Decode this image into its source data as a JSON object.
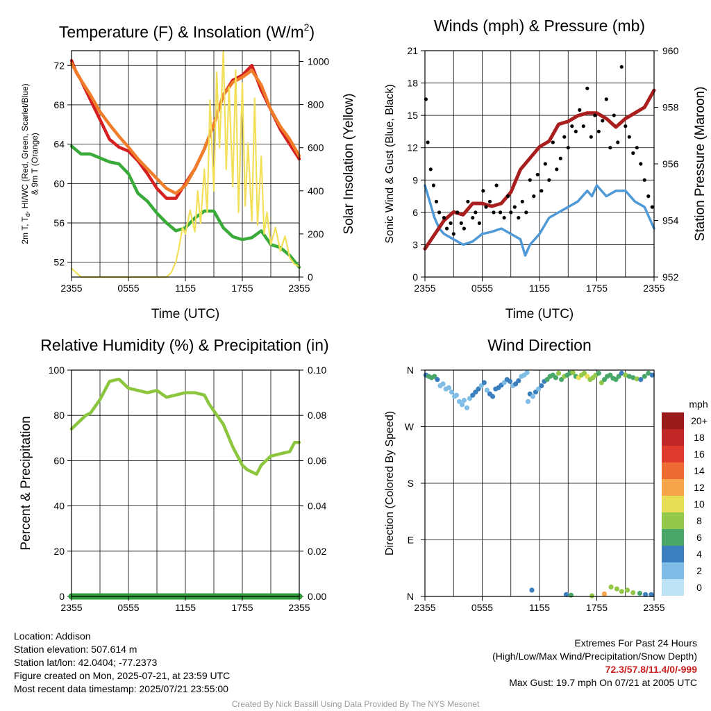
{
  "palette": {
    "temp": "#d42020",
    "dew": "#3aab3a",
    "temp9m": "#f07d2a",
    "insolation": "#f3e05a",
    "wind": "#4f9ad6",
    "gust": "#000000",
    "pressure": "#a91e1e",
    "rh": "#8cc63f",
    "precip": "#2f9a3a"
  },
  "xticks": [
    "2355",
    "0555",
    "1155",
    "1755",
    "2355"
  ],
  "charts": [
    {
      "type": "line",
      "title_main": "Temperature (F) & Insolation (W/m",
      "title_sup": "2",
      "title_end": ")",
      "xlabel": "Time (UTC)",
      "ylabel_left_1": "2m T, T",
      "ylabel_left_sub": "d",
      "ylabel_left_1b": ", HI/WC (Red, Green, Scarlet/Blue)",
      "ylabel_left_2": "& 9m T (Orange)",
      "ylabel_right": "Solar Insolation (Yellow)",
      "ylim_left": [
        50.5,
        73.5
      ],
      "yticks_left": [
        "52",
        "56",
        "60",
        "64",
        "68",
        "72"
      ],
      "ylim_right": [
        0,
        1050
      ],
      "yticks_right": [
        "0",
        "200",
        "400",
        "600",
        "800",
        "1000"
      ],
      "series": [
        {
          "key": "temp",
          "axis": "left",
          "x": [
            0,
            0.5,
            1,
            2,
            3,
            4,
            5,
            6,
            7,
            8,
            9,
            10,
            11,
            12,
            13,
            14,
            15,
            16,
            17,
            18,
            19,
            20,
            21,
            22,
            23,
            24
          ],
          "y": [
            72.5,
            71.3,
            70.5,
            68.5,
            66.5,
            64.5,
            63.7,
            63.3,
            62.3,
            61.0,
            59.5,
            58.5,
            58.5,
            60.0,
            61.5,
            63.5,
            66.0,
            69.0,
            70.5,
            71.0,
            72.0,
            69.5,
            67.5,
            65.5,
            64.0,
            62.5
          ]
        },
        {
          "key": "temp9m",
          "axis": "left",
          "x": [
            0,
            1,
            2,
            3,
            4,
            5,
            6,
            7,
            8,
            9,
            10,
            11,
            12,
            13,
            14,
            15,
            16,
            17,
            18,
            19,
            20,
            21,
            22,
            23,
            24
          ],
          "y": [
            72.2,
            70.5,
            69.0,
            67.3,
            66.0,
            64.8,
            63.7,
            62.5,
            61.5,
            60.5,
            59.5,
            59.0,
            59.8,
            61.5,
            63.5,
            66.0,
            69.0,
            70.3,
            70.8,
            71.5,
            70.0,
            67.5,
            65.8,
            64.5,
            62.8
          ]
        },
        {
          "key": "dew",
          "axis": "left",
          "x": [
            0,
            1,
            2,
            3,
            4,
            5,
            6,
            7,
            8,
            9,
            10,
            11,
            12,
            13,
            14,
            15,
            16,
            17,
            18,
            19,
            20,
            21,
            22,
            23,
            24
          ],
          "y": [
            63.8,
            63.0,
            63.0,
            62.6,
            62.2,
            62.0,
            61.0,
            59.0,
            58.2,
            57.0,
            56.0,
            55.2,
            55.5,
            56.5,
            57.2,
            57.2,
            55.5,
            54.6,
            54.3,
            54.5,
            55.2,
            53.8,
            53.5,
            52.7,
            51.5
          ]
        },
        {
          "key": "insolation",
          "axis": "right",
          "x": [
            0,
            0.5,
            1,
            2,
            4,
            6,
            8,
            9,
            10,
            10.5,
            11,
            11.3,
            11.7,
            12,
            12.5,
            13,
            13.3,
            13.6,
            14,
            14.3,
            14.6,
            15,
            15.3,
            15.6,
            16,
            16.3,
            16.6,
            17,
            17.3,
            17.6,
            18,
            18.3,
            18.6,
            19,
            19.3,
            19.6,
            20,
            20.3,
            20.6,
            21,
            21.5,
            22,
            22.5,
            23,
            23.5,
            24
          ],
          "y": [
            40,
            20,
            0,
            0,
            0,
            0,
            0,
            0,
            0,
            20,
            70,
            130,
            230,
            200,
            310,
            210,
            400,
            250,
            500,
            300,
            820,
            400,
            950,
            600,
            1050,
            500,
            880,
            420,
            960,
            300,
            900,
            330,
            620,
            260,
            830,
            240,
            560,
            200,
            300,
            150,
            230,
            120,
            190,
            90,
            60,
            50
          ]
        }
      ]
    },
    {
      "type": "line_scatter",
      "title": "Winds (mph) & Pressure (mb)",
      "xlabel": "Time (UTC)",
      "ylabel_left": "Sonic Wind & Gust (Blue, Black)",
      "ylabel_right": "Station Pressure (Maroon)",
      "ylim_left": [
        0,
        21
      ],
      "yticks_left": [
        "0",
        "3",
        "6",
        "9",
        "12",
        "15",
        "18",
        "21"
      ],
      "ylim_right": [
        952,
        960
      ],
      "yticks_right": [
        "952",
        "954",
        "956",
        "958",
        "960"
      ],
      "series": [
        {
          "key": "wind",
          "axis": "left",
          "x": [
            0,
            0.5,
            1,
            1.5,
            2,
            3,
            4,
            5,
            6,
            7,
            8,
            9,
            10,
            10.5,
            11,
            12,
            13,
            14,
            15,
            16,
            17,
            17.5,
            18,
            19,
            20,
            21,
            22,
            23,
            23.5,
            24
          ],
          "y": [
            8.5,
            7.0,
            5.5,
            4.5,
            4.0,
            3.5,
            3.0,
            3.3,
            4.0,
            4.2,
            4.5,
            4.0,
            3.5,
            2.0,
            3.0,
            4.0,
            5.5,
            6.0,
            6.5,
            7.0,
            8.0,
            7.5,
            8.5,
            7.5,
            8.0,
            8.0,
            7.0,
            6.5,
            5.5,
            4.5
          ]
        },
        {
          "key": "pressure",
          "axis": "right",
          "x": [
            0,
            1,
            2,
            3,
            4,
            5,
            6,
            7,
            8,
            9,
            10,
            11,
            12,
            13,
            14,
            15,
            16,
            17,
            18,
            19,
            20,
            21,
            22,
            23,
            24
          ],
          "y": [
            953.0,
            953.5,
            954.0,
            954.3,
            954.2,
            954.6,
            954.6,
            954.5,
            954.6,
            955.0,
            955.8,
            956.2,
            956.6,
            956.8,
            957.4,
            957.5,
            957.7,
            957.8,
            957.8,
            957.6,
            957.3,
            957.6,
            957.8,
            958.0,
            958.6
          ]
        },
        {
          "key": "gust",
          "axis": "left",
          "type": "scatter",
          "x": [
            0.1,
            0.3,
            0.6,
            0.9,
            1.2,
            1.5,
            2.0,
            2.3,
            2.7,
            3.0,
            3.4,
            3.8,
            4.1,
            4.5,
            5.0,
            5.3,
            5.7,
            6.1,
            6.4,
            6.8,
            7.2,
            7.5,
            7.9,
            8.3,
            8.7,
            9.0,
            9.4,
            9.8,
            10.2,
            10.6,
            11.0,
            11.4,
            11.8,
            12.2,
            12.6,
            13.0,
            13.4,
            13.8,
            14.2,
            14.6,
            15.0,
            15.4,
            15.8,
            16.2,
            16.6,
            17.0,
            17.4,
            17.8,
            18.2,
            18.6,
            19.0,
            19.4,
            19.8,
            20.2,
            20.6,
            21.0,
            21.4,
            21.8,
            22.2,
            22.6,
            23.0,
            23.4,
            23.8
          ],
          "y": [
            16.5,
            12.5,
            10.0,
            8.5,
            7.0,
            6.0,
            5.5,
            4.5,
            5.0,
            4.0,
            6.0,
            5.0,
            4.5,
            7.0,
            5.5,
            6.0,
            5.0,
            8.0,
            6.5,
            7.0,
            6.0,
            8.5,
            6.0,
            5.5,
            7.5,
            6.0,
            6.5,
            5.5,
            7.0,
            6.0,
            9.0,
            7.5,
            9.5,
            8.0,
            10.5,
            9.0,
            12.5,
            10.0,
            11.0,
            13.0,
            12.0,
            14.0,
            13.5,
            15.5,
            14.0,
            17.5,
            13.0,
            15.0,
            13.5,
            14.5,
            16.5,
            12.0,
            15.0,
            12.5,
            19.5,
            14.0,
            13.0,
            11.5,
            12.0,
            10.5,
            9.0,
            7.5,
            6.5
          ]
        }
      ]
    },
    {
      "type": "line",
      "title": "Relative Humidity (%) & Precipitation (in)",
      "ylabel_left": "Percent & Precipitation",
      "ylim_left": [
        0,
        100
      ],
      "yticks_left": [
        "0",
        "20",
        "40",
        "60",
        "80",
        "100"
      ],
      "ylim_right": [
        0,
        0.1
      ],
      "yticks_right": [
        "0.00",
        "0.02",
        "0.04",
        "0.06",
        "0.08",
        "0.10"
      ],
      "series": [
        {
          "key": "rh",
          "axis": "left",
          "x": [
            0,
            0.5,
            1,
            1.5,
            2,
            3,
            4,
            5,
            6,
            7,
            8,
            9,
            10,
            11,
            12,
            13,
            14,
            14.5,
            15,
            16,
            17,
            18,
            18.5,
            19,
            19.5,
            20,
            21,
            22,
            23,
            23.5,
            24
          ],
          "y": [
            74,
            76,
            78,
            80,
            81,
            87,
            95,
            96,
            92,
            91,
            90,
            91,
            88,
            89,
            90,
            90,
            89,
            85,
            82,
            76,
            66,
            58,
            56,
            55,
            54,
            58,
            62,
            63,
            64,
            68,
            68
          ]
        },
        {
          "key": "precip",
          "axis": "right",
          "x": [
            0,
            24
          ],
          "y": [
            0,
            0
          ]
        }
      ]
    },
    {
      "type": "scatter",
      "title": "Wind Direction",
      "ylabel_left": "Direction (Colored By Speed)",
      "ylim_left": [
        0,
        360
      ],
      "yticks_left": [
        "N",
        "E",
        "S",
        "W",
        "N"
      ],
      "legend_title": "mph",
      "legend_labels": [
        "20+",
        "18",
        "16",
        "14",
        "12",
        "10",
        "8",
        "6",
        "4",
        "2",
        "0"
      ],
      "legend_colors": [
        "#9b1b1b",
        "#c12727",
        "#df3a2d",
        "#ee6b33",
        "#f6a54a",
        "#e8de55",
        "#94c84a",
        "#4aa76a",
        "#3b7fbe",
        "#7fbde6",
        "#bee3f5"
      ],
      "x": [
        0.1,
        0.4,
        0.7,
        1.0,
        1.3,
        1.6,
        1.9,
        2.2,
        2.5,
        2.8,
        3.1,
        3.3,
        3.6,
        3.9,
        4.1,
        4.4,
        4.7,
        5.0,
        5.3,
        5.6,
        5.9,
        6.2,
        6.5,
        6.8,
        7.1,
        7.4,
        7.7,
        8.0,
        8.3,
        8.6,
        8.9,
        9.2,
        9.5,
        9.8,
        10.1,
        10.4,
        10.7,
        10.8,
        11.0,
        11.3,
        11.6,
        11.9,
        12.2,
        12.5,
        12.8,
        13.1,
        13.4,
        13.7,
        14.0,
        14.3,
        14.6,
        14.9,
        15.2,
        15.5,
        15.8,
        16.1,
        16.4,
        16.7,
        17.0,
        17.3,
        17.6,
        17.9,
        18.2,
        18.5,
        18.8,
        19.1,
        19.4,
        19.7,
        20.0,
        20.3,
        20.6,
        21.0,
        21.4,
        21.8,
        22.2,
        22.6,
        23.0,
        23.4,
        23.8,
        14.8,
        15.3,
        17.5,
        18.8,
        19.5,
        20.1,
        20.6,
        21.2,
        21.8,
        22.5,
        23.1,
        23.7,
        11.2
      ],
      "y": [
        352,
        350,
        348,
        350,
        345,
        335,
        338,
        330,
        332,
        325,
        318,
        320,
        310,
        305,
        312,
        300,
        315,
        320,
        325,
        330,
        335,
        340,
        328,
        322,
        318,
        330,
        332,
        336,
        340,
        345,
        342,
        335,
        338,
        343,
        350,
        352,
        356,
        310,
        322,
        318,
        325,
        330,
        335,
        342,
        345,
        350,
        352,
        348,
        355,
        345,
        350,
        352,
        355,
        356,
        350,
        348,
        352,
        355,
        350,
        345,
        348,
        352,
        355,
        340,
        345,
        350,
        352,
        347,
        345,
        350,
        355,
        352,
        350,
        348,
        346,
        345,
        350,
        355,
        352,
        3,
        2,
        1,
        4,
        15,
        12,
        8,
        10,
        6,
        5,
        3,
        3,
        10
      ],
      "c": [
        4,
        6,
        6,
        6,
        4,
        2,
        2,
        2,
        2,
        2,
        2,
        2,
        2,
        2,
        2,
        2,
        2,
        4,
        4,
        4,
        2,
        4,
        2,
        4,
        4,
        4,
        4,
        4,
        2,
        4,
        4,
        2,
        4,
        4,
        2,
        2,
        2,
        2,
        4,
        2,
        4,
        2,
        4,
        4,
        6,
        6,
        6,
        6,
        8,
        6,
        8,
        6,
        6,
        8,
        6,
        10,
        8,
        8,
        10,
        8,
        8,
        8,
        6,
        8,
        6,
        6,
        6,
        6,
        6,
        6,
        4,
        8,
        6,
        6,
        8,
        4,
        6,
        6,
        4,
        4,
        6,
        8,
        12,
        8,
        8,
        8,
        8,
        8,
        6,
        4,
        4,
        4
      ]
    }
  ],
  "info_left": {
    "line1": "Location: Addison",
    "line2": "Station elevation: 507.614 m",
    "line3": "Station lat/lon: 42.0404; -77.2373",
    "line4": "Figure created on Mon, 2025-07-21, at 23:59 UTC",
    "line5": "Most recent data timestamp: 2025/07/21 23:55:00"
  },
  "info_right": {
    "line1": "Extremes For Past 24 Hours",
    "line2": "(High/Low/Max Wind/Precipitation/Snow Depth)",
    "extremes": "72.3/57.8/11.4/0/-999",
    "line4": "Max Gust: 19.7 mph On 07/21 at 2005 UTC"
  },
  "credit": "Created By Nick Bassill Using Data Provided By The NYS Mesonet"
}
